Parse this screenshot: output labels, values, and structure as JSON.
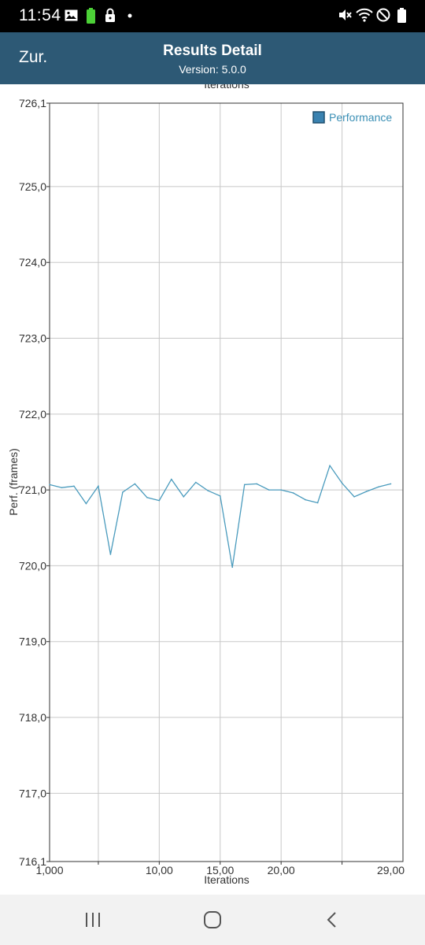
{
  "status_bar": {
    "time": "11:54",
    "icons_left": [
      "gallery-icon",
      "battery-icon",
      "lock-icon",
      "dot-icon"
    ],
    "icons_right": [
      "mute-vibrate-icon",
      "wifi-icon",
      "do-not-disturb-icon",
      "battery-icon"
    ]
  },
  "header": {
    "back_label": "Zur.",
    "title": "Results Detail",
    "subtitle": "Version: 5.0.0",
    "background_color": "#2d5975"
  },
  "chart_data": {
    "type": "line",
    "top_axis_label": "Iterations",
    "xlabel": "Iterations",
    "ylabel": "Perf. (frames)",
    "xlim": [
      0,
      29
    ],
    "ylim": [
      716.1,
      726.1
    ],
    "x_tick_labels": [
      {
        "x": 0,
        "label": "1,000"
      },
      {
        "x": 9,
        "label": "10,00"
      },
      {
        "x": 14,
        "label": "15,00"
      },
      {
        "x": 19,
        "label": "20,00"
      },
      {
        "x": 28,
        "label": "29,00"
      }
    ],
    "x_gridlines": [
      4,
      9,
      14,
      19,
      24
    ],
    "y_ticks": [
      {
        "value": 726.1,
        "label": "726,1"
      },
      {
        "value": 725.0,
        "label": "725,0"
      },
      {
        "value": 724.0,
        "label": "724,0"
      },
      {
        "value": 723.0,
        "label": "723,0"
      },
      {
        "value": 722.0,
        "label": "722,0"
      },
      {
        "value": 721.0,
        "label": "721,0"
      },
      {
        "value": 720.0,
        "label": "720,0"
      },
      {
        "value": 719.0,
        "label": "719,0"
      },
      {
        "value": 718.0,
        "label": "718,0"
      },
      {
        "value": 717.0,
        "label": "717,0"
      },
      {
        "value": 716.1,
        "label": "716,1"
      }
    ],
    "grid": true,
    "legend_position": "top-right",
    "series": [
      {
        "name": "Performance",
        "color": "#4a9bbd",
        "x": [
          0,
          1,
          2,
          3,
          4,
          5,
          6,
          7,
          8,
          9,
          10,
          11,
          12,
          13,
          14,
          15,
          16,
          17,
          18,
          19,
          20,
          21,
          22,
          23,
          24,
          25,
          26,
          27,
          28
        ],
        "values": [
          721.07,
          721.03,
          721.05,
          720.82,
          721.05,
          720.15,
          720.97,
          721.08,
          720.9,
          720.86,
          721.14,
          720.91,
          721.1,
          720.99,
          720.92,
          719.98,
          721.07,
          721.08,
          721.0,
          721.0,
          720.96,
          720.87,
          720.83,
          721.32,
          721.09,
          720.91,
          720.98,
          721.04,
          721.08
        ]
      }
    ]
  }
}
